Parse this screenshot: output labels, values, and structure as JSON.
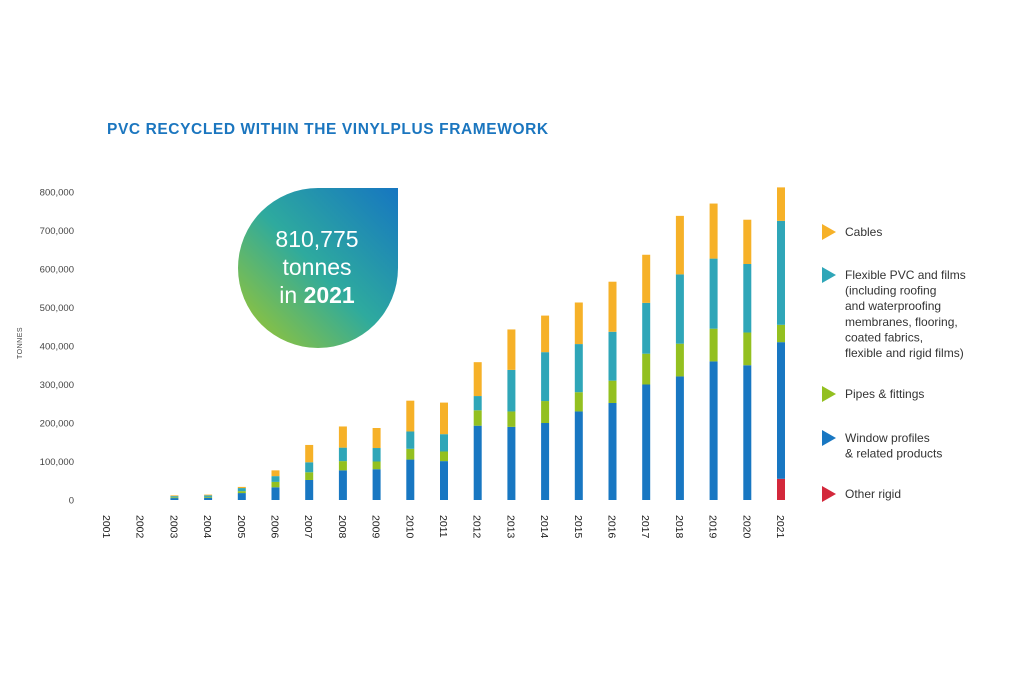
{
  "title": "PVC RECYCLED WITHIN THE VINYLPLUS FRAMEWORK",
  "colors": {
    "cables": "#f6b128",
    "flexible": "#2fa6b8",
    "pipes": "#93c020",
    "window": "#1877c2",
    "other_rigid": "#d3283b",
    "title": "#1b76bf"
  },
  "callout": {
    "value": "810,775",
    "unit": "tonnes",
    "prefix": "in",
    "year": "2021"
  },
  "chart_data": {
    "type": "bar",
    "stacked": true,
    "ylabel": "TONNES",
    "ylim": [
      0,
      800000
    ],
    "yticks": [
      "0",
      "100,000",
      "200,000",
      "300,000",
      "400,000",
      "500,000",
      "600,000",
      "700,000",
      "800,000"
    ],
    "categories": [
      "2001",
      "2002",
      "2003",
      "2004",
      "2005",
      "2006",
      "2007",
      "2008",
      "2009",
      "2010",
      "2011",
      "2012",
      "2013",
      "2014",
      "2015",
      "2016",
      "2017",
      "2018",
      "2019",
      "2020",
      "2021"
    ],
    "series": [
      {
        "name": "Other rigid",
        "key": "other_rigid",
        "values": [
          0,
          0,
          0,
          0,
          0,
          0,
          0,
          0,
          0,
          0,
          0,
          0,
          0,
          0,
          0,
          0,
          0,
          0,
          0,
          0,
          55000
        ]
      },
      {
        "name": "Window profiles & related products",
        "key": "window",
        "values": [
          0,
          0,
          5000,
          6000,
          18000,
          33000,
          52000,
          77000,
          80000,
          105000,
          101000,
          193000,
          190000,
          200000,
          230000,
          252000,
          300000,
          321000,
          360000,
          350000,
          355000
        ]
      },
      {
        "name": "Pipes & fittings",
        "key": "pipes",
        "values": [
          0,
          0,
          2000,
          2000,
          5000,
          14000,
          20000,
          24000,
          20000,
          28000,
          25000,
          40000,
          40000,
          57000,
          50000,
          58000,
          80000,
          85000,
          85000,
          85000,
          45000
        ]
      },
      {
        "name": "Flexible PVC and films (including roofing and waterproofing membranes, flooring, coated fabrics, flexible and rigid films)",
        "key": "flexible",
        "values": [
          0,
          0,
          3000,
          4000,
          8000,
          15000,
          26000,
          35000,
          35000,
          45000,
          45000,
          37000,
          108000,
          127000,
          125000,
          127000,
          132000,
          180000,
          182000,
          178000,
          270000
        ]
      },
      {
        "name": "Cables",
        "key": "cables",
        "values": [
          0,
          0,
          2000,
          2000,
          3000,
          15000,
          45000,
          55000,
          52000,
          80000,
          82000,
          88000,
          105000,
          95000,
          108000,
          130000,
          125000,
          152000,
          143000,
          115000,
          87000
        ]
      }
    ]
  },
  "legend": [
    {
      "key": "cables",
      "lines": [
        "Cables"
      ]
    },
    {
      "key": "flexible",
      "lines": [
        "Flexible PVC and films",
        "(including roofing",
        "and waterproofing",
        "membranes, flooring,",
        "coated fabrics,",
        "flexible and rigid films)"
      ]
    },
    {
      "key": "pipes",
      "lines": [
        "Pipes & fittings"
      ]
    },
    {
      "key": "window",
      "lines": [
        "Window profiles",
        "& related products"
      ]
    },
    {
      "key": "other_rigid",
      "lines": [
        "Other rigid"
      ]
    }
  ]
}
